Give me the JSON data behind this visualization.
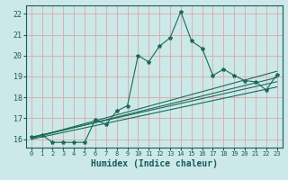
{
  "title": "",
  "xlabel": "Humidex (Indice chaleur)",
  "bg_color": "#cce8e8",
  "grid_color": "#dba8a8",
  "line_color": "#1a6b5a",
  "ylim": [
    15.6,
    22.4
  ],
  "xlim": [
    -0.5,
    23.5
  ],
  "yticks": [
    16,
    17,
    18,
    19,
    20,
    21,
    22
  ],
  "xticks": [
    0,
    1,
    2,
    3,
    4,
    5,
    6,
    7,
    8,
    9,
    10,
    11,
    12,
    13,
    14,
    15,
    16,
    17,
    18,
    19,
    20,
    21,
    22,
    23
  ],
  "main_x": [
    0,
    1,
    2,
    3,
    4,
    5,
    6,
    7,
    8,
    9,
    10,
    11,
    12,
    13,
    14,
    15,
    16,
    17,
    18,
    19,
    20,
    21,
    22,
    23
  ],
  "main_y": [
    16.1,
    16.2,
    15.85,
    15.85,
    15.85,
    15.85,
    16.95,
    16.7,
    17.35,
    17.6,
    20.0,
    19.7,
    20.45,
    20.85,
    22.1,
    20.7,
    20.35,
    19.05,
    19.35,
    19.05,
    18.8,
    18.75,
    18.35,
    19.1
  ],
  "line1_x": [
    0,
    23
  ],
  "line1_y": [
    16.05,
    19.25
  ],
  "line2_x": [
    0,
    23
  ],
  "line2_y": [
    16.1,
    18.75
  ],
  "line3_x": [
    0,
    23
  ],
  "line3_y": [
    16.0,
    18.5
  ],
  "line4_x": [
    0,
    23
  ],
  "line4_y": [
    16.05,
    18.95
  ]
}
